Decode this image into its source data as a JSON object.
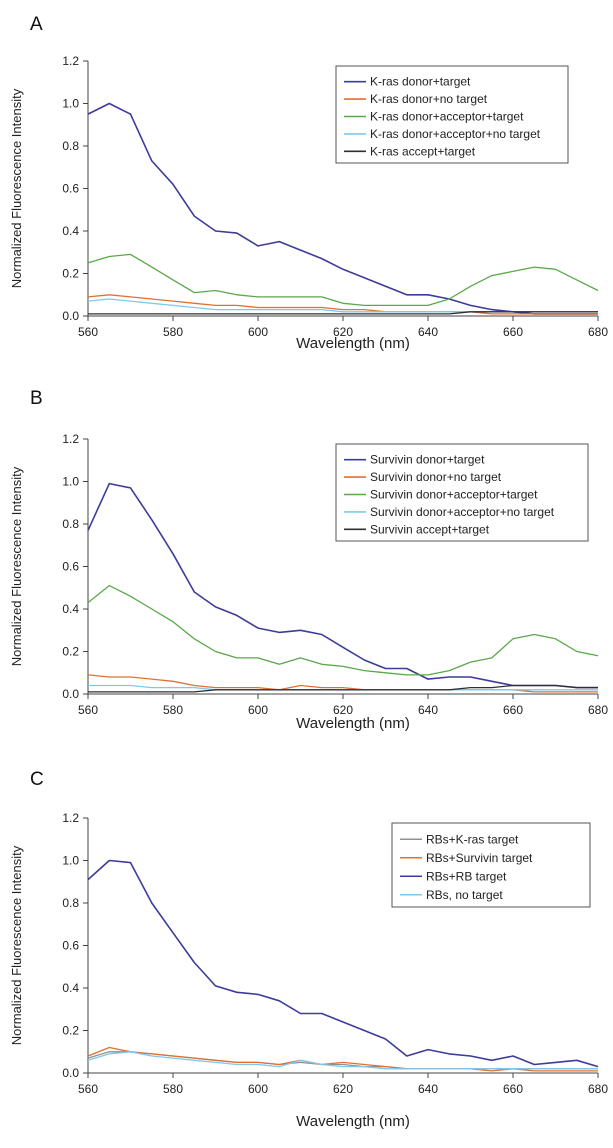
{
  "chart_data": [
    {
      "panel_letter": "A",
      "type": "line",
      "xlabel": "Wavelength (nm)",
      "ylabel": "Normalized Fluorescence Intensity",
      "xlim": [
        560,
        680
      ],
      "ylim": [
        0,
        1.2
      ],
      "xticks": [
        "560",
        "580",
        "600",
        "620",
        "640",
        "660",
        "680"
      ],
      "yticks": [
        "0.0",
        "0.2",
        "0.4",
        "0.6",
        "0.8",
        "1.0",
        "1.2"
      ],
      "grid": false,
      "legend_position": "top-right",
      "x": [
        560,
        565,
        570,
        575,
        580,
        585,
        590,
        595,
        600,
        605,
        610,
        615,
        620,
        625,
        630,
        635,
        640,
        645,
        650,
        655,
        660,
        665,
        670,
        675,
        680
      ],
      "series": [
        {
          "name": "K-ras donor+target",
          "color": "#3c3c9a",
          "values": [
            0.95,
            1.0,
            0.95,
            0.73,
            0.62,
            0.47,
            0.4,
            0.39,
            0.33,
            0.35,
            0.31,
            0.27,
            0.22,
            0.18,
            0.14,
            0.1,
            0.1,
            0.08,
            0.05,
            0.03,
            0.02,
            0.01,
            0.01,
            0.01,
            0.01
          ]
        },
        {
          "name": "K-ras donor+no target",
          "color": "#e07030",
          "values": [
            0.09,
            0.1,
            0.09,
            0.08,
            0.07,
            0.06,
            0.05,
            0.05,
            0.04,
            0.04,
            0.04,
            0.04,
            0.03,
            0.03,
            0.02,
            0.02,
            0.02,
            0.02,
            0.02,
            0.01,
            0.01,
            0.01,
            0.01,
            0.01,
            0.01
          ]
        },
        {
          "name": "K-ras donor+acceptor+target",
          "color": "#5aa84a",
          "values": [
            0.25,
            0.28,
            0.29,
            0.23,
            0.17,
            0.11,
            0.12,
            0.1,
            0.09,
            0.09,
            0.09,
            0.09,
            0.06,
            0.05,
            0.05,
            0.05,
            0.05,
            0.08,
            0.14,
            0.19,
            0.21,
            0.23,
            0.22,
            0.17,
            0.12
          ]
        },
        {
          "name": "K-ras donor+acceptor+no target",
          "color": "#7ec8f0",
          "values": [
            0.07,
            0.08,
            0.07,
            0.06,
            0.05,
            0.04,
            0.03,
            0.03,
            0.03,
            0.03,
            0.03,
            0.03,
            0.02,
            0.02,
            0.02,
            0.02,
            0.02,
            0.02,
            0.02,
            0.02,
            0.02,
            0.02,
            0.02,
            0.02,
            0.02
          ]
        },
        {
          "name": "K-ras accept+target",
          "color": "#303030",
          "values": [
            0.01,
            0.01,
            0.01,
            0.01,
            0.01,
            0.01,
            0.01,
            0.01,
            0.01,
            0.01,
            0.01,
            0.01,
            0.01,
            0.01,
            0.01,
            0.01,
            0.01,
            0.01,
            0.02,
            0.02,
            0.02,
            0.02,
            0.02,
            0.02,
            0.02
          ]
        }
      ]
    },
    {
      "panel_letter": "B",
      "type": "line",
      "xlabel": "Wavelength (nm)",
      "ylabel": "Normalized Fluorescence Intensity",
      "xlim": [
        560,
        680
      ],
      "ylim": [
        0,
        1.2
      ],
      "xticks": [
        "560",
        "580",
        "600",
        "620",
        "640",
        "660",
        "680"
      ],
      "yticks": [
        "0.0",
        "0.2",
        "0.4",
        "0.6",
        "0.8",
        "1.0",
        "1.2"
      ],
      "grid": false,
      "legend_position": "top-right",
      "x": [
        560,
        565,
        570,
        575,
        580,
        585,
        590,
        595,
        600,
        605,
        610,
        615,
        620,
        625,
        630,
        635,
        640,
        645,
        650,
        655,
        660,
        665,
        670,
        675,
        680
      ],
      "series": [
        {
          "name": "Survivin donor+target",
          "color": "#3c3c9a",
          "values": [
            0.77,
            0.99,
            0.97,
            0.82,
            0.66,
            0.48,
            0.41,
            0.37,
            0.31,
            0.29,
            0.3,
            0.28,
            0.22,
            0.16,
            0.12,
            0.12,
            0.07,
            0.08,
            0.08,
            0.06,
            0.04,
            0.04,
            0.04,
            0.03,
            0.03
          ]
        },
        {
          "name": "Survivin donor+no target",
          "color": "#e07030",
          "values": [
            0.09,
            0.08,
            0.08,
            0.07,
            0.06,
            0.04,
            0.03,
            0.03,
            0.03,
            0.02,
            0.04,
            0.03,
            0.03,
            0.02,
            0.02,
            0.02,
            0.02,
            0.02,
            0.02,
            0.02,
            0.02,
            0.01,
            0.01,
            0.01,
            0.01
          ]
        },
        {
          "name": "Survivin donor+acceptor+target",
          "color": "#5aa84a",
          "values": [
            0.43,
            0.51,
            0.46,
            0.4,
            0.34,
            0.26,
            0.2,
            0.17,
            0.17,
            0.14,
            0.17,
            0.14,
            0.13,
            0.11,
            0.1,
            0.09,
            0.09,
            0.11,
            0.15,
            0.17,
            0.26,
            0.28,
            0.26,
            0.2,
            0.18
          ]
        },
        {
          "name": "Survivin donor+acceptor+no target",
          "color": "#7ec8f0",
          "values": [
            0.04,
            0.04,
            0.04,
            0.03,
            0.03,
            0.03,
            0.02,
            0.02,
            0.02,
            0.02,
            0.02,
            0.02,
            0.02,
            0.02,
            0.02,
            0.02,
            0.02,
            0.02,
            0.02,
            0.02,
            0.02,
            0.02,
            0.02,
            0.02,
            0.02
          ]
        },
        {
          "name": "Survivin accept+target",
          "color": "#303030",
          "values": [
            0.01,
            0.01,
            0.01,
            0.01,
            0.01,
            0.01,
            0.02,
            0.02,
            0.02,
            0.02,
            0.02,
            0.02,
            0.02,
            0.02,
            0.02,
            0.02,
            0.02,
            0.02,
            0.03,
            0.03,
            0.04,
            0.04,
            0.04,
            0.03,
            0.03
          ]
        }
      ]
    },
    {
      "panel_letter": "C",
      "type": "line",
      "xlabel": "Wavelength (nm)",
      "ylabel": "Normalized Fluorescence Intensity",
      "xlim": [
        560,
        680
      ],
      "ylim": [
        0,
        1.2
      ],
      "xticks": [
        "560",
        "580",
        "600",
        "620",
        "640",
        "660",
        "680"
      ],
      "yticks": [
        "0.0",
        "0.2",
        "0.4",
        "0.6",
        "0.8",
        "1.0",
        "1.2"
      ],
      "grid": false,
      "legend_position": "top-right",
      "x": [
        560,
        565,
        570,
        575,
        580,
        585,
        590,
        595,
        600,
        605,
        610,
        615,
        620,
        625,
        630,
        635,
        640,
        645,
        650,
        655,
        660,
        665,
        670,
        675,
        680
      ],
      "series": [
        {
          "name": "RBs+K-ras target",
          "color": "#909090",
          "values": [
            0.07,
            0.1,
            0.1,
            0.09,
            0.08,
            0.07,
            0.06,
            0.05,
            0.05,
            0.04,
            0.05,
            0.04,
            0.04,
            0.03,
            0.03,
            0.02,
            0.02,
            0.02,
            0.02,
            0.02,
            0.02,
            0.02,
            0.02,
            0.02,
            0.02
          ]
        },
        {
          "name": "RBs+Survivin target",
          "color": "#e07030",
          "values": [
            0.08,
            0.12,
            0.1,
            0.09,
            0.08,
            0.07,
            0.06,
            0.05,
            0.05,
            0.04,
            0.06,
            0.04,
            0.05,
            0.04,
            0.03,
            0.02,
            0.02,
            0.02,
            0.02,
            0.01,
            0.02,
            0.01,
            0.01,
            0.01,
            0.01
          ]
        },
        {
          "name": "RBs+RB target",
          "color": "#3c3c9a",
          "values": [
            0.91,
            1.0,
            0.99,
            0.8,
            0.66,
            0.52,
            0.41,
            0.38,
            0.37,
            0.34,
            0.28,
            0.28,
            0.24,
            0.2,
            0.16,
            0.08,
            0.11,
            0.09,
            0.08,
            0.06,
            0.08,
            0.04,
            0.05,
            0.06,
            0.03
          ]
        },
        {
          "name": "RBs, no target",
          "color": "#7ec8f0",
          "values": [
            0.06,
            0.09,
            0.1,
            0.08,
            0.07,
            0.06,
            0.05,
            0.04,
            0.04,
            0.03,
            0.06,
            0.04,
            0.03,
            0.03,
            0.02,
            0.02,
            0.02,
            0.02,
            0.02,
            0.02,
            0.02,
            0.02,
            0.02,
            0.02,
            0.02
          ]
        }
      ]
    }
  ]
}
